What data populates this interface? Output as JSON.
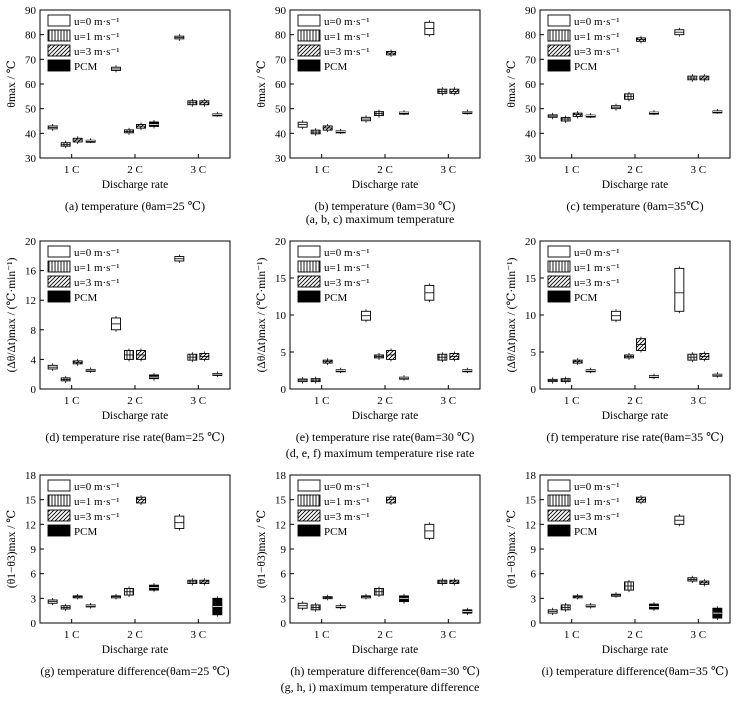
{
  "legend": {
    "entries": [
      {
        "label": "u=0 m·s⁻¹",
        "pattern": "blank"
      },
      {
        "label": "u=1 m·s⁻¹",
        "pattern": "vertical"
      },
      {
        "label": "u=3 m·s⁻¹",
        "pattern": "diagonal"
      },
      {
        "label": "PCM",
        "pattern": "solid"
      }
    ]
  },
  "x_title": "Discharge rate",
  "group_captions": [
    "(a, b, c) maximum temperature",
    "(d, e, f) maximum temperature rise rate",
    "(g, h, i) maximum temperature difference"
  ],
  "chart_data": [
    {
      "type": "box",
      "caption": "(a) temperature (θam=25 ℃)",
      "ylabel": "θmax / ℃",
      "ylim": [
        30,
        90
      ],
      "yticks": [
        30,
        40,
        50,
        60,
        70,
        80,
        90
      ],
      "categories": [
        "1 C",
        "2 C",
        "3 C"
      ],
      "series": [
        {
          "name": "u=0 m·s⁻¹",
          "boxes": [
            [
              41.8,
              42.4,
              43
            ],
            [
              65.5,
              66.1,
              66.8
            ],
            [
              78.3,
              78.8,
              79.4
            ]
          ]
        },
        {
          "name": "u=1 m·s⁻¹",
          "boxes": [
            [
              34.8,
              35.4,
              36.2
            ],
            [
              40.2,
              40.8,
              41.4
            ],
            [
              51.6,
              52.4,
              53.2
            ]
          ]
        },
        {
          "name": "u=3 m·s⁻¹",
          "boxes": [
            [
              36.5,
              37.3,
              38
            ],
            [
              42.1,
              42.9,
              43.6
            ],
            [
              51.6,
              52.4,
              53.2
            ]
          ]
        },
        {
          "name": "PCM",
          "boxes": [
            [
              36.8,
              37,
              37.2
            ],
            [
              42.8,
              43.6,
              44.6
            ],
            [
              47.5,
              47.7,
              47.9
            ]
          ]
        }
      ]
    },
    {
      "type": "box",
      "caption": "(b) temperature (θam=30 ℃)",
      "ylabel": "θmax / ℃",
      "ylim": [
        30,
        90
      ],
      "yticks": [
        30,
        40,
        50,
        60,
        70,
        80,
        90
      ],
      "categories": [
        "1 C",
        "2 C",
        "3 C"
      ],
      "series": [
        {
          "name": "u=0 m·s⁻¹",
          "boxes": [
            [
              42.5,
              43.6,
              44.5
            ],
            [
              45.1,
              45.8,
              46.5
            ],
            [
              80,
              82.5,
              85
            ]
          ]
        },
        {
          "name": "u=1 m·s⁻¹",
          "boxes": [
            [
              39.8,
              40.5,
              41.3
            ],
            [
              47.2,
              48,
              48.8
            ],
            [
              56.2,
              57,
              57.9
            ]
          ]
        },
        {
          "name": "u=3 m·s⁻¹",
          "boxes": [
            [
              41.3,
              42.2,
              43
            ],
            [
              71.8,
              72.5,
              73.2
            ],
            [
              56.2,
              57,
              57.9
            ]
          ]
        },
        {
          "name": "PCM",
          "boxes": [
            [
              40.6,
              40.8,
              41
            ],
            [
              48.2,
              48.4,
              48.6
            ],
            [
              48.4,
              48.6,
              48.8
            ]
          ]
        }
      ]
    },
    {
      "type": "box",
      "caption": "(c) temperature (θam=35℃)",
      "ylabel": "θmax / ℃",
      "ylim": [
        30,
        90
      ],
      "yticks": [
        30,
        40,
        50,
        60,
        70,
        80,
        90
      ],
      "categories": [
        "1 C",
        "2 C",
        "3 C"
      ],
      "series": [
        {
          "name": "u=0 m·s⁻¹",
          "boxes": [
            [
              46.5,
              47,
              47.5
            ],
            [
              50,
              50.6,
              51.2
            ],
            [
              80,
              81,
              82
            ]
          ]
        },
        {
          "name": "u=1 m·s⁻¹",
          "boxes": [
            [
              45,
              45.8,
              46.4
            ],
            [
              53.8,
              55,
              56
            ],
            [
              61.7,
              62.4,
              63.2
            ]
          ]
        },
        {
          "name": "u=3 m·s⁻¹",
          "boxes": [
            [
              46.8,
              47.6,
              48.2
            ],
            [
              77.3,
              78,
              78.7
            ],
            [
              61.7,
              62.4,
              63.2
            ]
          ]
        },
        {
          "name": "PCM",
          "boxes": [
            [
              47,
              47.2,
              47.4
            ],
            [
              48.2,
              48.4,
              48.6
            ],
            [
              48.7,
              48.9,
              49.1
            ]
          ]
        }
      ]
    },
    {
      "type": "box",
      "caption": "(d) temperature rise rate(θam=25 ℃)",
      "ylabel": "(Δθ/Δt)max / (℃·min⁻¹)",
      "ylim": [
        0,
        20
      ],
      "yticks": [
        0,
        4,
        8,
        12,
        16,
        20
      ],
      "categories": [
        "1 C",
        "2 C",
        "3 C"
      ],
      "series": [
        {
          "name": "u=0 m·s⁻¹",
          "boxes": [
            [
              2.7,
              2.95,
              3.2
            ],
            [
              8,
              8.8,
              9.6
            ],
            [
              17.3,
              17.6,
              17.9
            ]
          ]
        },
        {
          "name": "u=1 m·s⁻¹",
          "boxes": [
            [
              1.1,
              1.3,
              1.5
            ],
            [
              4,
              4.6,
              5.2
            ],
            [
              3.9,
              4.3,
              4.7
            ]
          ]
        },
        {
          "name": "u=3 m·s⁻¹",
          "boxes": [
            [
              3.4,
              3.6,
              3.8
            ],
            [
              4,
              4.6,
              5.2
            ],
            [
              4,
              4.4,
              4.8
            ]
          ]
        },
        {
          "name": "PCM",
          "boxes": [
            [
              2.45,
              2.55,
              2.65
            ],
            [
              1.4,
              1.6,
              1.9
            ],
            [
              1.9,
              2,
              2.1
            ]
          ]
        }
      ]
    },
    {
      "type": "box",
      "caption": "(e) temperature rise rate(θam=30 ℃)",
      "ylabel": "(Δθ/Δt)max / (℃·min⁻¹)",
      "ylim": [
        0,
        20
      ],
      "yticks": [
        0,
        5,
        10,
        15,
        20
      ],
      "categories": [
        "1 C",
        "2 C",
        "3 C"
      ],
      "series": [
        {
          "name": "u=0 m·s⁻¹",
          "boxes": [
            [
              1,
              1.2,
              1.35
            ],
            [
              9.3,
              9.9,
              10.5
            ],
            [
              12,
              13,
              14
            ]
          ]
        },
        {
          "name": "u=1 m·s⁻¹",
          "boxes": [
            [
              1,
              1.2,
              1.4
            ],
            [
              4.2,
              4.4,
              4.6
            ],
            [
              3.9,
              4.3,
              4.7
            ]
          ]
        },
        {
          "name": "u=3 m·s⁻¹",
          "boxes": [
            [
              3.5,
              3.7,
              3.9
            ],
            [
              4,
              4.6,
              5.2
            ],
            [
              4,
              4.4,
              4.8
            ]
          ]
        },
        {
          "name": "PCM",
          "boxes": [
            [
              2.4,
              2.5,
              2.6
            ],
            [
              1.4,
              1.5,
              1.6
            ],
            [
              2.4,
              2.5,
              2.6
            ]
          ]
        }
      ]
    },
    {
      "type": "box",
      "caption": "(f) temperature rise rate(θam=35 ℃)",
      "ylabel": "(Δθ/Δt)max / (℃·min⁻¹)",
      "ylim": [
        0,
        20
      ],
      "yticks": [
        0,
        5,
        10,
        15,
        20
      ],
      "categories": [
        "1 C",
        "2 C",
        "3 C"
      ],
      "series": [
        {
          "name": "u=0 m·s⁻¹",
          "boxes": [
            [
              1,
              1.15,
              1.3
            ],
            [
              9.3,
              9.9,
              10.5
            ],
            [
              10.5,
              13,
              16.3
            ]
          ]
        },
        {
          "name": "u=1 m·s⁻¹",
          "boxes": [
            [
              1,
              1.2,
              1.4
            ],
            [
              4.2,
              4.4,
              4.6
            ],
            [
              3.9,
              4.3,
              4.7
            ]
          ]
        },
        {
          "name": "u=3 m·s⁻¹",
          "boxes": [
            [
              3.5,
              3.7,
              3.9
            ],
            [
              5.2,
              6,
              6.8
            ],
            [
              4,
              4.4,
              4.8
            ]
          ]
        },
        {
          "name": "PCM",
          "boxes": [
            [
              2.4,
              2.5,
              2.6
            ],
            [
              1.6,
              1.7,
              1.8
            ],
            [
              1.8,
              1.9,
              2
            ]
          ]
        }
      ]
    },
    {
      "type": "box",
      "caption": "(g) temperature difference(θam=25 ℃)",
      "ylabel": "(θ1−θ3)max / ℃",
      "ylim": [
        0,
        18
      ],
      "yticks": [
        0,
        3,
        6,
        9,
        12,
        15,
        18
      ],
      "categories": [
        "1 C",
        "2 C",
        "3 C"
      ],
      "series": [
        {
          "name": "u=0 m·s⁻¹",
          "boxes": [
            [
              2.4,
              2.6,
              2.8
            ],
            [
              3.1,
              3.2,
              3.3
            ],
            [
              11.5,
              12.2,
              13
            ]
          ]
        },
        {
          "name": "u=1 m·s⁻¹",
          "boxes": [
            [
              1.7,
              1.9,
              2.1
            ],
            [
              3.4,
              3.8,
              4.2
            ],
            [
              4.8,
              5,
              5.2
            ]
          ]
        },
        {
          "name": "u=3 m·s⁻¹",
          "boxes": [
            [
              3.1,
              3.2,
              3.3
            ],
            [
              14.6,
              15,
              15.3
            ],
            [
              4.8,
              5,
              5.2
            ]
          ]
        },
        {
          "name": "PCM",
          "boxes": [
            [
              2,
              2.1,
              2.2
            ],
            [
              4,
              4.3,
              4.6
            ],
            [
              1,
              2,
              3
            ]
          ]
        }
      ]
    },
    {
      "type": "box",
      "caption": "(h) temperature difference(θam=30 ℃)",
      "ylabel": "(θ1−θ3)max / ℃",
      "ylim": [
        0,
        18
      ],
      "yticks": [
        0,
        3,
        6,
        9,
        12,
        15,
        18
      ],
      "categories": [
        "1 C",
        "2 C",
        "3 C"
      ],
      "series": [
        {
          "name": "u=0 m·s⁻¹",
          "boxes": [
            [
              1.8,
              2.1,
              2.4
            ],
            [
              3.1,
              3.2,
              3.3
            ],
            [
              10.3,
              11.2,
              12
            ]
          ]
        },
        {
          "name": "u=1 m·s⁻¹",
          "boxes": [
            [
              1.6,
              1.9,
              2.2
            ],
            [
              3.4,
              3.8,
              4.2
            ],
            [
              4.8,
              5,
              5.2
            ]
          ]
        },
        {
          "name": "u=3 m·s⁻¹",
          "boxes": [
            [
              3,
              3.1,
              3.2
            ],
            [
              14.6,
              15,
              15.3
            ],
            [
              4.8,
              5,
              5.2
            ]
          ]
        },
        {
          "name": "PCM",
          "boxes": [
            [
              1.9,
              2,
              2.1
            ],
            [
              2.6,
              3,
              3.3
            ],
            [
              1.2,
              1.4,
              1.6
            ]
          ]
        }
      ]
    },
    {
      "type": "box",
      "caption": "(i) temperature difference(θam=35 ℃)",
      "ylabel": "(θ1−θ3)max / ℃",
      "ylim": [
        0,
        18
      ],
      "yticks": [
        0,
        3,
        6,
        9,
        12,
        15,
        18
      ],
      "categories": [
        "1 C",
        "2 C",
        "3 C"
      ],
      "series": [
        {
          "name": "u=0 m·s⁻¹",
          "boxes": [
            [
              1.2,
              1.4,
              1.6
            ],
            [
              3.3,
              3.4,
              3.5
            ],
            [
              12,
              12.5,
              13
            ]
          ]
        },
        {
          "name": "u=1 m·s⁻¹",
          "boxes": [
            [
              1.6,
              1.9,
              2.2
            ],
            [
              4,
              4.5,
              5
            ],
            [
              5.1,
              5.3,
              5.5
            ]
          ]
        },
        {
          "name": "u=3 m·s⁻¹",
          "boxes": [
            [
              3.1,
              3.2,
              3.3
            ],
            [
              14.7,
              15,
              15.3
            ],
            [
              4.7,
              4.9,
              5.1
            ]
          ]
        },
        {
          "name": "PCM",
          "boxes": [
            [
              2,
              2.1,
              2.2
            ],
            [
              1.7,
              2,
              2.3
            ],
            [
              0.6,
              1.2,
              1.8
            ]
          ]
        }
      ]
    }
  ]
}
